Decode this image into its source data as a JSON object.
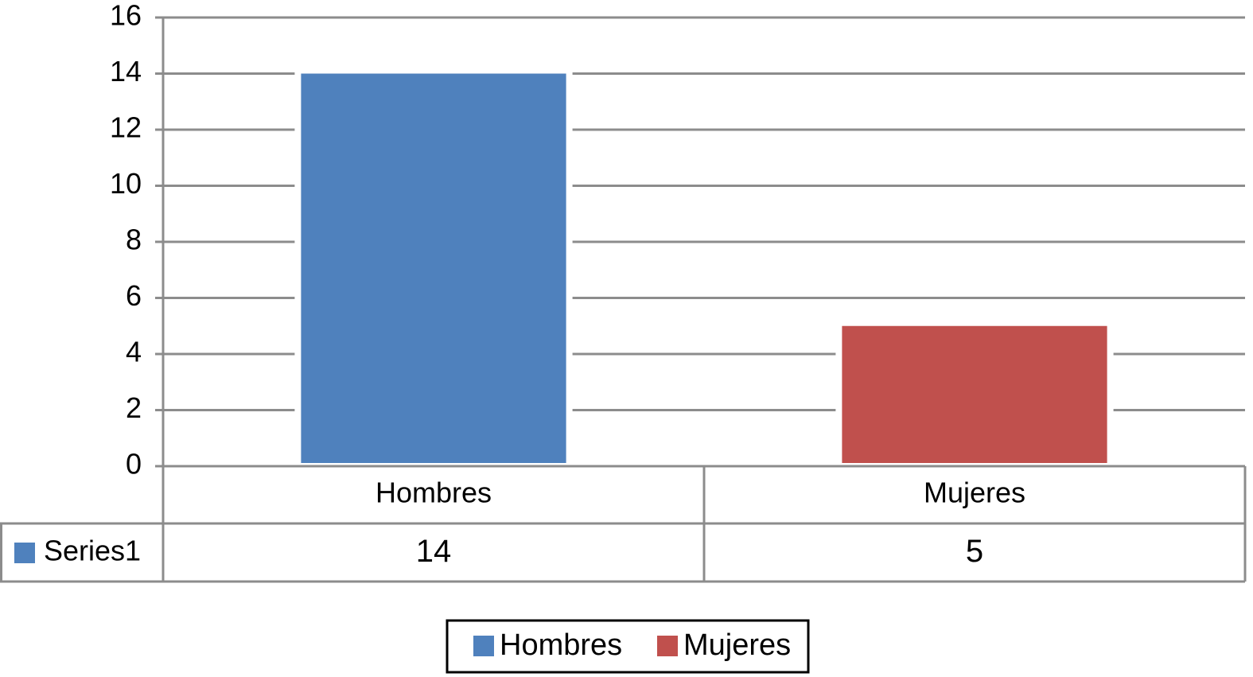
{
  "chart_data": {
    "type": "bar",
    "categories": [
      "Hombres",
      "Mujeres"
    ],
    "series": [
      {
        "name": "Series1",
        "values": [
          14,
          5
        ]
      }
    ],
    "colors": [
      "#4f81bd",
      "#c0504d"
    ],
    "ylim": [
      0,
      16
    ],
    "yticks": [
      0,
      2,
      4,
      6,
      8,
      10,
      12,
      14,
      16
    ],
    "grid": true,
    "data_table": true,
    "legend": "bottom"
  }
}
